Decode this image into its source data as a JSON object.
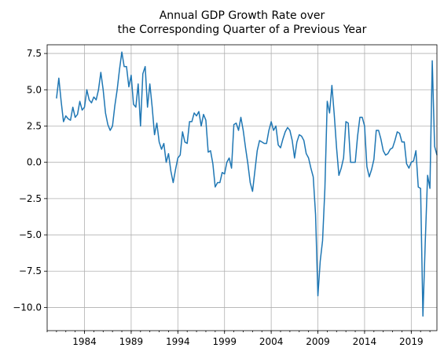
{
  "chart_data": {
    "type": "line",
    "title": [
      "Annual GDP Growth Rate over",
      "the Corresponding Quarter of a Previous Year"
    ],
    "x": [
      1981,
      1981.25,
      1981.5,
      1981.75,
      1982,
      1982.25,
      1982.5,
      1982.75,
      1983,
      1983.25,
      1983.5,
      1983.75,
      1984,
      1984.25,
      1984.5,
      1984.75,
      1985,
      1985.25,
      1985.5,
      1985.75,
      1986,
      1986.25,
      1986.5,
      1986.75,
      1987,
      1987.25,
      1987.5,
      1987.75,
      1988,
      1988.25,
      1988.5,
      1988.75,
      1989,
      1989.25,
      1989.5,
      1989.75,
      1990,
      1990.25,
      1990.5,
      1990.75,
      1991,
      1991.25,
      1991.5,
      1991.75,
      1992,
      1992.25,
      1992.5,
      1992.75,
      1993,
      1993.25,
      1993.5,
      1993.75,
      1994,
      1994.25,
      1994.5,
      1994.75,
      1995,
      1995.25,
      1995.5,
      1995.75,
      1996,
      1996.25,
      1996.5,
      1996.75,
      1997,
      1997.25,
      1997.5,
      1997.75,
      1998,
      1998.25,
      1998.5,
      1998.75,
      1999,
      1999.25,
      1999.5,
      1999.75,
      2000,
      2000.25,
      2000.5,
      2000.75,
      2001,
      2001.25,
      2001.5,
      2001.75,
      2002,
      2002.25,
      2002.5,
      2002.75,
      2003,
      2003.25,
      2003.5,
      2003.75,
      2004,
      2004.25,
      2004.5,
      2004.75,
      2005,
      2005.25,
      2005.5,
      2005.75,
      2006,
      2006.25,
      2006.5,
      2006.75,
      2007,
      2007.25,
      2007.5,
      2007.75,
      2008,
      2008.25,
      2008.5,
      2008.75,
      2009,
      2009.25,
      2009.5,
      2009.75,
      2010,
      2010.25,
      2010.5,
      2010.75,
      2011,
      2011.25,
      2011.5,
      2011.75,
      2012,
      2012.25,
      2012.5,
      2012.75,
      2013,
      2013.25,
      2013.5,
      2013.75,
      2014,
      2014.25,
      2014.5,
      2014.75,
      2015,
      2015.25,
      2015.5,
      2015.75,
      2016,
      2016.25,
      2016.5,
      2016.75,
      2017,
      2017.25,
      2017.5,
      2017.75,
      2018,
      2018.25,
      2018.5,
      2018.75,
      2019,
      2019.25,
      2019.5,
      2019.75,
      2020,
      2020.25,
      2020.5,
      2020.75,
      2021,
      2021.25,
      2021.5,
      2021.75
    ],
    "series": [
      {
        "color": "#1f77b4",
        "values": [
          4.4,
          5.8,
          4.2,
          2.8,
          3.2,
          3.0,
          2.9,
          3.8,
          3.1,
          3.3,
          4.2,
          3.6,
          3.8,
          5.0,
          4.3,
          4.1,
          4.5,
          4.3,
          5.0,
          6.2,
          5.0,
          3.4,
          2.6,
          2.2,
          2.5,
          3.9,
          5.0,
          6.4,
          7.6,
          6.6,
          6.6,
          5.2,
          6.0,
          4.0,
          3.8,
          5.4,
          2.5,
          6.1,
          6.6,
          3.8,
          5.4,
          3.8,
          1.9,
          2.7,
          1.4,
          0.9,
          1.3,
          0.0,
          0.6,
          -0.6,
          -1.4,
          -0.5,
          0.3,
          0.5,
          2.1,
          1.4,
          1.3,
          2.8,
          2.8,
          3.4,
          3.2,
          3.5,
          2.5,
          3.3,
          2.9,
          0.7,
          0.8,
          -0.1,
          -1.7,
          -1.4,
          -1.4,
          -0.7,
          -0.8,
          0.0,
          0.3,
          -0.4,
          2.6,
          2.7,
          2.2,
          3.1,
          2.2,
          1.0,
          -0.1,
          -1.4,
          -2.0,
          -0.6,
          0.8,
          1.5,
          1.4,
          1.3,
          1.3,
          2.2,
          2.8,
          2.2,
          2.5,
          1.2,
          1.0,
          1.6,
          2.1,
          2.4,
          2.2,
          1.5,
          0.3,
          1.4,
          1.9,
          1.8,
          1.5,
          0.6,
          0.3,
          -0.4,
          -1.0,
          -3.6,
          -9.2,
          -6.8,
          -5.4,
          -1.8,
          4.2,
          3.4,
          5.3,
          3.3,
          1.0,
          -0.9,
          -0.4,
          0.3,
          2.8,
          2.7,
          0.0,
          0.0,
          0.0,
          1.8,
          3.1,
          3.1,
          2.5,
          -0.3,
          -1.0,
          -0.5,
          0.2,
          2.2,
          2.2,
          1.6,
          0.8,
          0.5,
          0.6,
          0.9,
          1.0,
          1.5,
          2.1,
          2.0,
          1.4,
          1.4,
          -0.1,
          -0.4,
          0.0,
          0.1,
          0.8,
          -1.7,
          -1.8,
          -10.6,
          -5.5,
          -0.9,
          -1.8,
          7.0,
          1.1,
          0.5
        ]
      }
    ],
    "xlim": [
      1980.0,
      2021.75
    ],
    "xticks": [
      1984,
      1989,
      1994,
      1999,
      2004,
      2009,
      2014,
      2019
    ],
    "ylim": [
      -11.6,
      8.1
    ],
    "yticks": [
      {
        "value": -10,
        "label": "−10.0"
      },
      {
        "value": -7.5,
        "label": "−7.5"
      },
      {
        "value": -5,
        "label": "−5.0"
      },
      {
        "value": -2.5,
        "label": "−2.5"
      },
      {
        "value": 0,
        "label": "0.0"
      },
      2.5,
      {
        "value": 5,
        "label": "5.0"
      },
      7.5
    ],
    "grid": true
  }
}
